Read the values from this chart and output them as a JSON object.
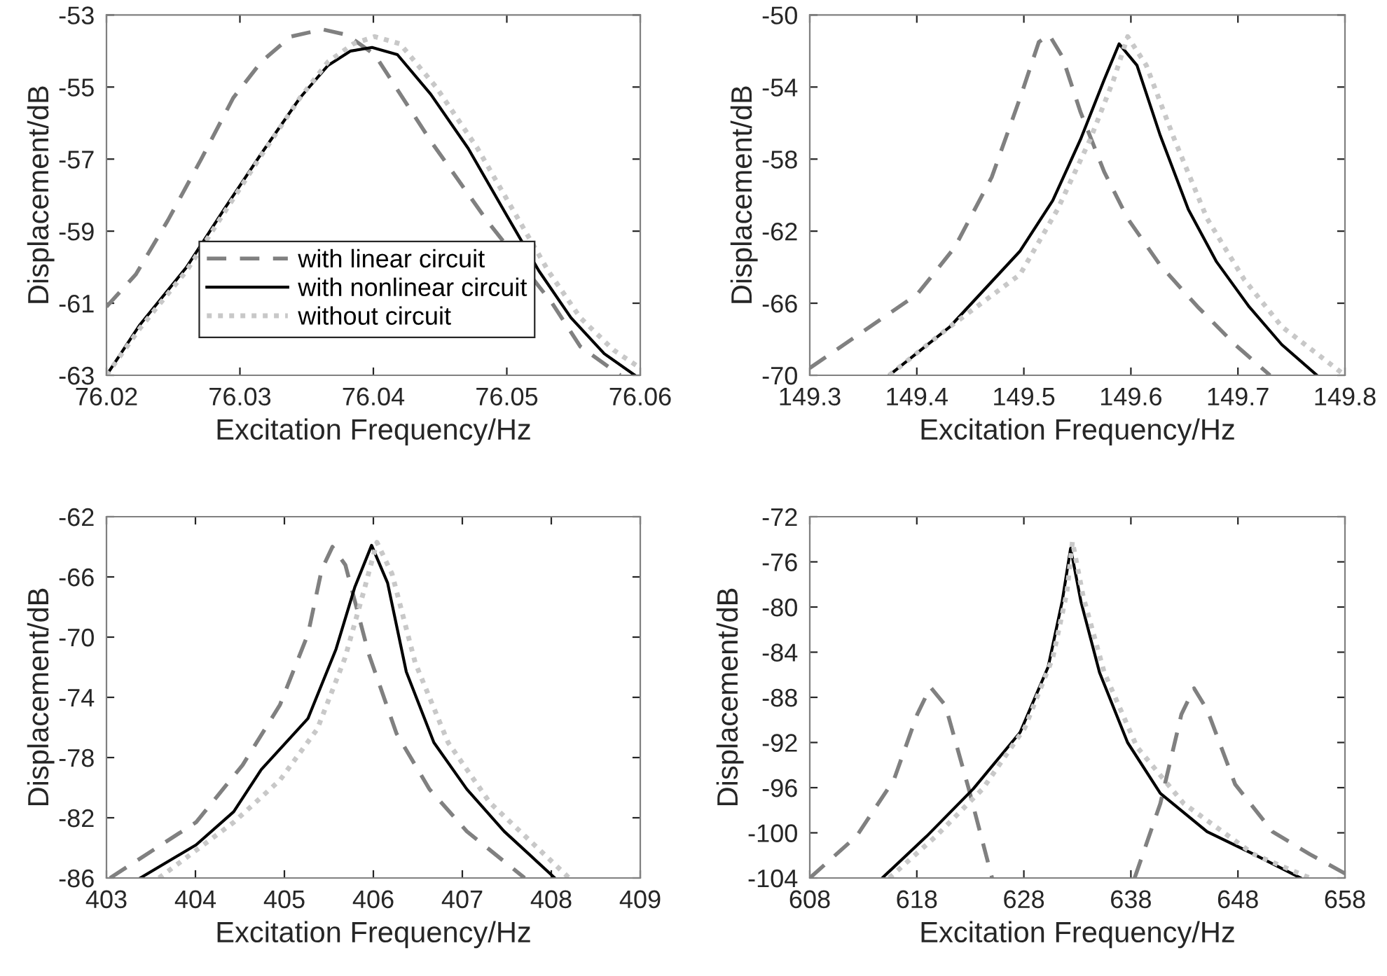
{
  "chart_data": [
    {
      "type": "line",
      "xlabel": "Excitation Frequency/Hz",
      "ylabel": "Displacement/dB",
      "xlim": [
        76.02,
        76.06
      ],
      "xticks": [
        76.02,
        76.03,
        76.04,
        76.05,
        76.06
      ],
      "ylim": [
        -63,
        -53
      ],
      "yticks": [
        -63,
        -61,
        -59,
        -57,
        -55,
        -53
      ],
      "legend": "bottom",
      "series": [
        {
          "name": "with linear circuit",
          "color": "#808080",
          "line_style": "dashed",
          "x": [
            76.02,
            76.0222,
            76.0246,
            76.0271,
            76.0295,
            76.0316,
            76.0338,
            76.0362,
            76.038,
            76.0401,
            76.0443,
            76.0485,
            76.0534,
            76.0555,
            76.0585
          ],
          "values": [
            -61.1,
            -60.2,
            -58.7,
            -57.0,
            -55.3,
            -54.3,
            -53.6,
            -53.4,
            -53.55,
            -54.1,
            -56.5,
            -58.7,
            -61.0,
            -62.2,
            -63.0
          ]
        },
        {
          "name": "with nonlinear circuit",
          "color": "#000000",
          "line_style": "solid",
          "x": [
            76.02,
            76.0225,
            76.026,
            76.0288,
            76.0316,
            76.0345,
            76.0366,
            76.0383,
            76.0399,
            76.0418,
            76.0443,
            76.0471,
            76.0499,
            76.0524,
            76.0548,
            76.0573,
            76.0596
          ],
          "values": [
            -63.0,
            -61.6,
            -60.0,
            -58.4,
            -56.85,
            -55.3,
            -54.4,
            -54.0,
            -53.9,
            -54.1,
            -55.2,
            -56.7,
            -58.5,
            -60.1,
            -61.4,
            -62.4,
            -63.0
          ]
        },
        {
          "name": "without circuit",
          "color": "#c8c8c8",
          "line_style": "dotted",
          "x": [
            76.02,
            76.0225,
            76.026,
            76.0288,
            76.0316,
            76.0345,
            76.0366,
            76.0385,
            76.0401,
            76.042,
            76.0447,
            76.0478,
            76.0506,
            76.0531,
            76.0555,
            76.058,
            76.06
          ],
          "values": [
            -63.0,
            -61.7,
            -60.1,
            -58.5,
            -56.9,
            -55.3,
            -54.3,
            -53.8,
            -53.6,
            -53.8,
            -55.0,
            -56.7,
            -58.5,
            -60.1,
            -61.4,
            -62.3,
            -62.8
          ]
        }
      ]
    },
    {
      "type": "line",
      "xlabel": "Excitation Frequency/Hz",
      "ylabel": "Displacement/dB",
      "xlim": [
        149.3,
        149.8
      ],
      "xticks": [
        149.3,
        149.4,
        149.5,
        149.6,
        149.7,
        149.8
      ],
      "ylim": [
        -70,
        -50
      ],
      "yticks": [
        -70,
        -66,
        -62,
        -58,
        -54,
        -50
      ],
      "series": [
        {
          "color": "#808080",
          "line_style": "dashed",
          "x": [
            149.3,
            149.4004,
            149.4354,
            149.47,
            149.4965,
            149.514,
            149.5236,
            149.5358,
            149.553,
            149.575,
            149.597,
            149.6275,
            149.6624,
            149.6974,
            149.73
          ],
          "values": [
            -69.6,
            -65.5,
            -62.9,
            -59.0,
            -54.6,
            -51.5,
            -51.1,
            -52.3,
            -55.4,
            -58.7,
            -61.3,
            -63.9,
            -66.2,
            -68.3,
            -70.0
          ]
        },
        {
          "color": "#000000",
          "line_style": "solid",
          "x": [
            149.3742,
            149.431,
            149.4965,
            149.527,
            149.553,
            149.575,
            149.589,
            149.6057,
            149.6275,
            149.6537,
            149.68,
            149.7105,
            149.741,
            149.7738
          ],
          "values": [
            -70.0,
            -67.3,
            -63.1,
            -60.3,
            -56.9,
            -53.6,
            -51.6,
            -52.8,
            -56.7,
            -60.8,
            -63.7,
            -66.2,
            -68.3,
            -70.0
          ]
        },
        {
          "color": "#c8c8c8",
          "line_style": "dotted",
          "x": [
            149.3742,
            149.431,
            149.4965,
            149.5314,
            149.562,
            149.5838,
            149.597,
            149.6144,
            149.6406,
            149.6712,
            149.706,
            149.741,
            149.7978
          ],
          "values": [
            -70.0,
            -67.3,
            -64.4,
            -60.8,
            -56.9,
            -53.6,
            -51.2,
            -52.8,
            -56.9,
            -61.3,
            -64.7,
            -67.3,
            -69.9
          ]
        }
      ]
    },
    {
      "type": "line",
      "xlabel": "Excitation Frequency/Hz",
      "ylabel": "Displacement/dB",
      "xlim": [
        403,
        409
      ],
      "xticks": [
        403,
        404,
        405,
        406,
        407,
        408,
        409
      ],
      "ylim": [
        -86,
        -62
      ],
      "yticks": [
        -86,
        -82,
        -78,
        -74,
        -70,
        -66,
        -62
      ],
      "series": [
        {
          "color": "#808080",
          "line_style": "dashed",
          "x": [
            403.04,
            404.007,
            404.53,
            404.95,
            405.265,
            405.42,
            405.54,
            405.685,
            405.947,
            406.26,
            406.63,
            407.05,
            407.7
          ],
          "values": [
            -86.0,
            -82.3,
            -78.5,
            -74.5,
            -69.8,
            -65.5,
            -64.0,
            -65.2,
            -71.1,
            -76.4,
            -80.1,
            -82.9,
            -86.0
          ]
        },
        {
          "color": "#000000",
          "line_style": "solid",
          "x": [
            403.38,
            404.007,
            404.43,
            404.74,
            405.265,
            405.58,
            405.79,
            405.98,
            406.16,
            406.37,
            406.68,
            407.05,
            407.47,
            408.04
          ],
          "values": [
            -86.0,
            -83.8,
            -81.6,
            -78.8,
            -75.4,
            -70.8,
            -66.7,
            -63.9,
            -66.4,
            -72.3,
            -77.0,
            -80.1,
            -82.9,
            -86.0
          ]
        },
        {
          "color": "#c8c8c8",
          "line_style": "dotted",
          "x": [
            403.59,
            404.43,
            404.95,
            405.37,
            405.68,
            405.89,
            406.04,
            406.21,
            406.47,
            406.84,
            407.31,
            408.2
          ],
          "values": [
            -86.0,
            -82.3,
            -79.5,
            -76.1,
            -71.4,
            -67.0,
            -63.7,
            -65.8,
            -71.7,
            -77.0,
            -81.0,
            -86.0
          ]
        }
      ]
    },
    {
      "type": "line",
      "xlabel": "Excitation Frequency/Hz",
      "ylabel": "Displacement/dB",
      "xlim": [
        608,
        658
      ],
      "xticks": [
        608,
        618,
        628,
        638,
        648,
        658
      ],
      "ylim": [
        -104,
        -72
      ],
      "yticks": [
        -104,
        -100,
        -96,
        -92,
        -88,
        -84,
        -80,
        -76,
        -72
      ],
      "series": [
        {
          "color": "#808080",
          "line_style": "dashed",
          "x": [
            608,
            612.37,
            615.86,
            618.04,
            619.27,
            620.66,
            622.85,
            625.03,
            631.7,
            638.35,
            640.75,
            642.72,
            643.9,
            645.12,
            647.74,
            651.23,
            654.72,
            658
          ],
          "values": [
            -104.0,
            -100.3,
            -95.3,
            -89.5,
            -87.1,
            -88.7,
            -96.1,
            -104.0,
            null,
            -104.0,
            -97.4,
            -89.5,
            -87.2,
            -89.1,
            -95.7,
            -99.9,
            -101.9,
            -103.6
          ]
        },
        {
          "color": "#000000",
          "line_style": "solid",
          "x": [
            614.77,
            618.92,
            623.28,
            627.65,
            630.27,
            631.58,
            632.37,
            633.33,
            635.07,
            637.69,
            640.75,
            645.12,
            649.48,
            653.85
          ],
          "values": [
            -104.0,
            -100.3,
            -96.1,
            -91.1,
            -85.3,
            -79.5,
            -74.8,
            -79.5,
            -85.8,
            -92.0,
            -96.5,
            -99.9,
            -101.9,
            -104.0
          ]
        },
        {
          "color": "#c8c8c8",
          "line_style": "dotted",
          "x": [
            615.42,
            619.79,
            624.16,
            628.09,
            630.7,
            632.02,
            632.54,
            633.55,
            635.51,
            638.57,
            642.93,
            649.48,
            654.72
          ],
          "values": [
            -104.0,
            -100.3,
            -96.1,
            -90.7,
            -84.5,
            -78.7,
            -74.2,
            -79.1,
            -85.8,
            -92.4,
            -97.4,
            -101.9,
            -104.0
          ]
        }
      ]
    }
  ]
}
